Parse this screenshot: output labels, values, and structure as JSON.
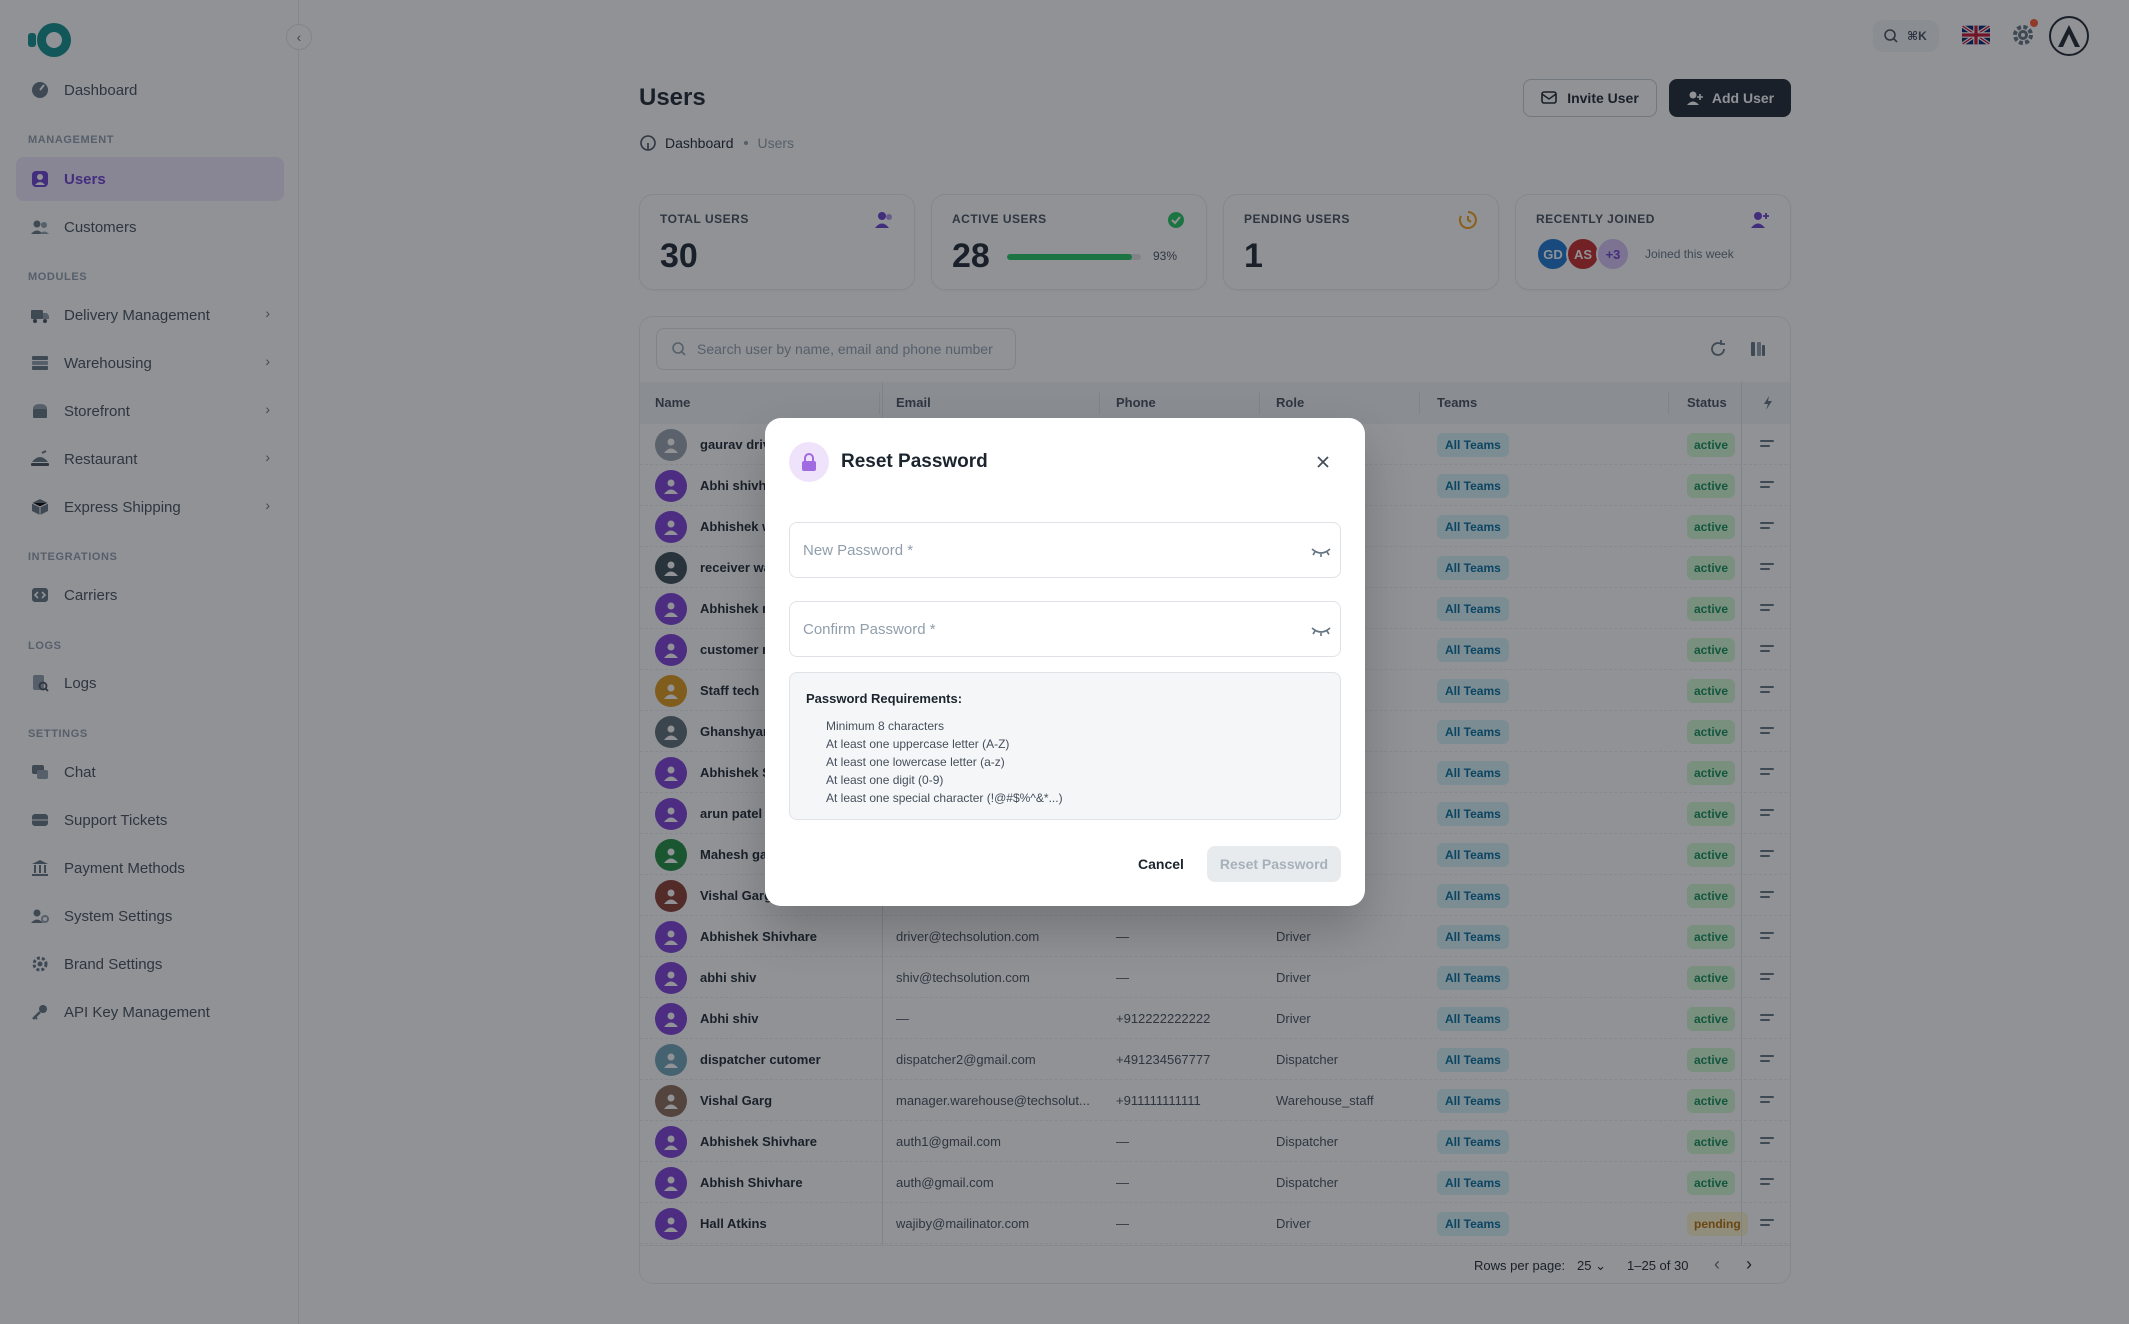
{
  "sidebar": {
    "items": {
      "dashboard": "Dashboard",
      "users": "Users",
      "customers": "Customers",
      "delivery": "Delivery Management",
      "warehousing": "Warehousing",
      "storefront": "Storefront",
      "restaurant": "Restaurant",
      "express": "Express Shipping",
      "carriers": "Carriers",
      "logs": "Logs",
      "chat": "Chat",
      "support": "Support Tickets",
      "payment": "Payment Methods",
      "system": "System Settings",
      "brand": "Brand Settings",
      "apikey": "API Key Management"
    },
    "sections": {
      "management": "MANAGEMENT",
      "modules": "MODULES",
      "integrations": "INTEGRATIONS",
      "logs": "LOGS",
      "settings": "SETTINGS"
    }
  },
  "topbar": {
    "shortcut": "⌘K"
  },
  "header": {
    "title": "Users",
    "breadcrumb_home": "Dashboard",
    "breadcrumb_current": "Users",
    "invite_label": "Invite User",
    "add_label": "Add User"
  },
  "stats": {
    "total": {
      "label": "TOTAL USERS",
      "value": "30"
    },
    "active": {
      "label": "ACTIVE USERS",
      "value": "28",
      "percent_text": "93%",
      "percent": 93
    },
    "pending": {
      "label": "PENDING USERS",
      "value": "1"
    },
    "recent": {
      "label": "RECENTLY JOINED",
      "avatars": [
        "GD",
        "AS",
        "+3"
      ],
      "note": "Joined this week"
    }
  },
  "table": {
    "search_placeholder": "Search user by name, email and phone number",
    "columns": {
      "name": "Name",
      "email": "Email",
      "phone": "Phone",
      "role": "Role",
      "teams": "Teams",
      "status": "Status"
    },
    "rows": [
      {
        "name": "gaurav driv",
        "email": "",
        "phone": "",
        "role": "",
        "team": "All Teams",
        "status": "active"
      },
      {
        "name": "Abhi shivha",
        "email": "",
        "phone": "",
        "role": "",
        "team": "All Teams",
        "status": "active"
      },
      {
        "name": "Abhishek w",
        "email": "",
        "phone": "",
        "role": "nager",
        "team": "All Teams",
        "status": "active"
      },
      {
        "name": "receiver wa",
        "email": "",
        "phone": "",
        "role": "ff",
        "team": "All Teams",
        "status": "active"
      },
      {
        "name": "Abhishek n",
        "email": "",
        "phone": "",
        "role": "ff",
        "team": "All Teams",
        "status": "active"
      },
      {
        "name": "customer n",
        "email": "",
        "phone": "",
        "role": "",
        "team": "All Teams",
        "status": "active"
      },
      {
        "name": "Staff tech",
        "email": "",
        "phone": "",
        "role": "ff",
        "team": "All Teams",
        "status": "active"
      },
      {
        "name": "Ghanshyam",
        "email": "",
        "phone": "",
        "role": "",
        "team": "All Teams",
        "status": "active"
      },
      {
        "name": "Abhishek S",
        "email": "",
        "phone": "",
        "role": "",
        "team": "All Teams",
        "status": "active"
      },
      {
        "name": "arun patel",
        "email": "",
        "phone": "",
        "role": "",
        "team": "All Teams",
        "status": "active"
      },
      {
        "name": "Mahesh ga",
        "email": "",
        "phone": "",
        "role": "",
        "team": "All Teams",
        "status": "active"
      },
      {
        "name": "Vishal Garg",
        "email": "",
        "phone": "",
        "role": "",
        "team": "All Teams",
        "status": "active"
      },
      {
        "name": "Abhishek Shivhare",
        "email": "driver@techsolution.com",
        "phone": "—",
        "role": "Driver",
        "team": "All Teams",
        "status": "active"
      },
      {
        "name": "abhi shiv",
        "email": "shiv@techsolution.com",
        "phone": "—",
        "role": "Driver",
        "team": "All Teams",
        "status": "active"
      },
      {
        "name": "Abhi shiv",
        "email": "—",
        "phone": "+912222222222",
        "role": "Driver",
        "team": "All Teams",
        "status": "active"
      },
      {
        "name": "dispatcher cutomer",
        "email": "dispatcher2@gmail.com",
        "phone": "+491234567777",
        "role": "Dispatcher",
        "team": "All Teams",
        "status": "active"
      },
      {
        "name": "Vishal Garg",
        "email": "manager.warehouse@techsolut...",
        "phone": "+911111111111",
        "role": "Warehouse_staff",
        "team": "All Teams",
        "status": "active"
      },
      {
        "name": "Abhishek Shivhare",
        "email": "auth1@gmail.com",
        "phone": "—",
        "role": "Dispatcher",
        "team": "All Teams",
        "status": "active"
      },
      {
        "name": "Abhish Shivhare",
        "email": "auth@gmail.com",
        "phone": "—",
        "role": "Dispatcher",
        "team": "All Teams",
        "status": "active"
      },
      {
        "name": "Hall Atkins",
        "email": "wajiby@mailinator.com",
        "phone": "—",
        "role": "Driver",
        "team": "All Teams",
        "status": "pending"
      }
    ],
    "footer": {
      "rows_per_page_label": "Rows per page:",
      "rows_per_page": "25",
      "range": "1–25 of 30"
    }
  },
  "modal": {
    "title": "Reset Password",
    "new_password_placeholder": "New Password *",
    "confirm_password_placeholder": "Confirm Password *",
    "requirements_title": "Password Requirements:",
    "requirements": [
      "Minimum 8 characters",
      "At least one uppercase letter (A-Z)",
      "At least one lowercase letter (a-z)",
      "At least one digit (0-9)",
      "At least one special character (!@#$%^&*...)"
    ],
    "cancel_label": "Cancel",
    "reset_label": "Reset Password"
  },
  "colors": {
    "accent": "#6b3fcf",
    "dark": "#1c252e",
    "success": "#22c55e",
    "avatar": "#7e3fd6"
  }
}
